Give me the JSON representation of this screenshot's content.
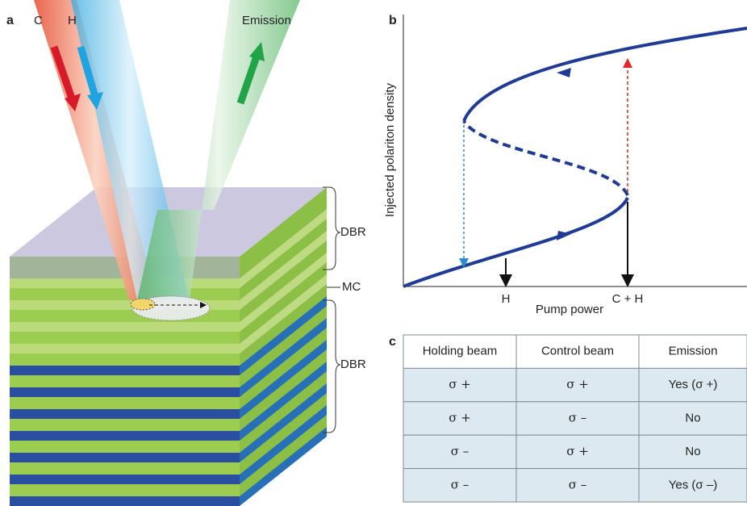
{
  "panel_a": {
    "label": "a",
    "beams": {
      "control": "C",
      "holding": "H",
      "emission": "Emission"
    },
    "layers": {
      "top_dbr": "DBR",
      "cavity": "MC",
      "bottom_dbr": "DBR"
    }
  },
  "panel_b": {
    "label": "b",
    "y_axis_label": "Injected polariton density",
    "x_axis_label": "Pump power",
    "x_markers": [
      "H",
      "C + H"
    ]
  },
  "panel_c": {
    "label": "c",
    "table": {
      "header": [
        "Holding beam",
        "Control beam",
        "Emission"
      ],
      "rows": [
        [
          "σ +",
          "σ +",
          "Yes (σ +)"
        ],
        [
          "σ +",
          "σ –",
          "No"
        ],
        [
          "σ –",
          "σ +",
          "No"
        ],
        [
          "σ –",
          "σ –",
          "Yes (σ –)"
        ]
      ]
    }
  }
}
